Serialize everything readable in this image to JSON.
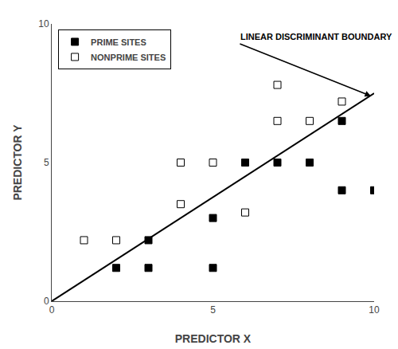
{
  "chart_data": {
    "type": "scatter",
    "xlabel": "PREDICTOR X",
    "ylabel": "PREDICTOR Y",
    "series": [
      {
        "name": "PRIME SITES",
        "type": "scatter",
        "color": "#000000",
        "marker": "square",
        "x": [
          2,
          3,
          5,
          3,
          5,
          6,
          7,
          8,
          9,
          9,
          10
        ],
        "values": [
          1.2,
          1.2,
          1.2,
          2.2,
          3.0,
          5.0,
          5.0,
          5.0,
          6.5,
          4.0,
          4.0
        ]
      },
      {
        "name": "NONPRIME SITES",
        "type": "scatter",
        "color": "#000000",
        "marker": "square-open",
        "x": [
          1,
          2,
          4,
          5,
          4,
          6,
          7,
          8,
          7,
          9
        ],
        "values": [
          2.2,
          2.2,
          5.0,
          5.0,
          3.5,
          3.2,
          6.5,
          6.5,
          7.8,
          7.2
        ]
      },
      {
        "type": "line",
        "color": "#000000",
        "line_style": "solid",
        "x": [
          0,
          10
        ],
        "values": [
          0,
          7.5
        ]
      }
    ],
    "annotations": [
      {
        "text": "LINEAR DISCRIMINANT BOUNDARY",
        "x": 5.8,
        "y": 9.3,
        "arrow_x": 9.9,
        "arrow_y": 7.4
      }
    ],
    "xlim": [
      0,
      10
    ],
    "ylim": [
      0,
      10
    ],
    "xticks": [
      0,
      5,
      10
    ],
    "yticks": [
      0,
      5,
      10
    ],
    "grid": false,
    "legend": "upper left"
  }
}
